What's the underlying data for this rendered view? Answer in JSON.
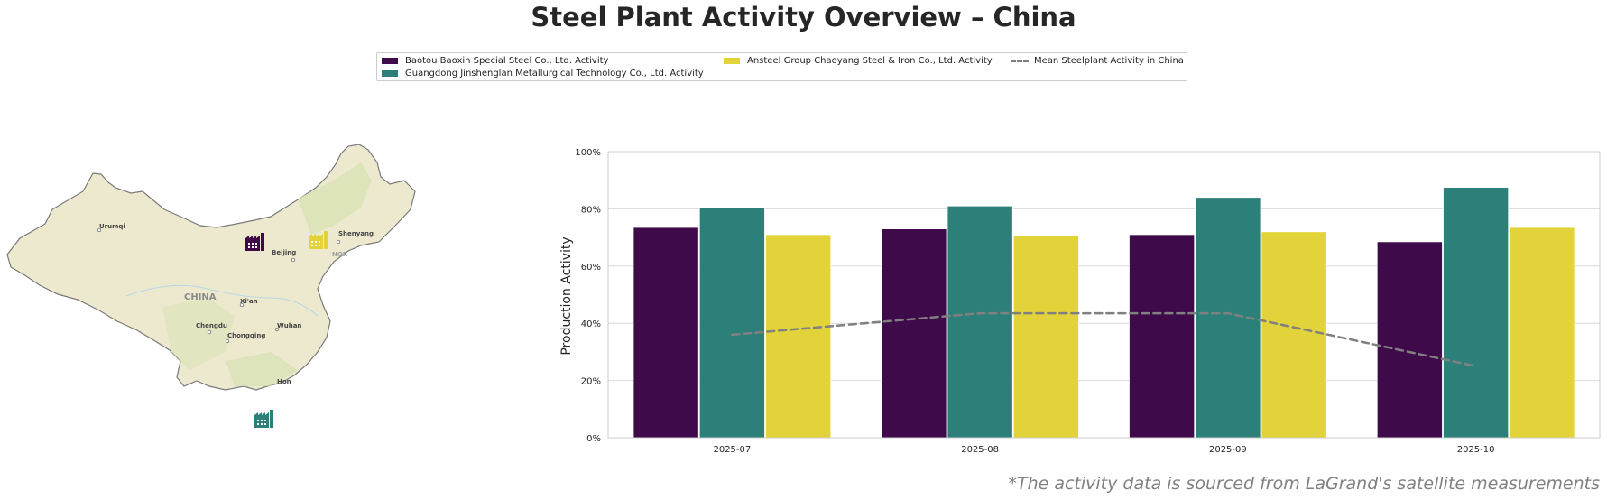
{
  "title": "Steel Plant Activity Overview – China",
  "footnote": "*The activity data is sourced from LaGrand's satellite measurements",
  "legend": [
    {
      "label": "Baotou Baoxin Special Steel Co., Ltd. Activity",
      "color": "#3f0a4a",
      "kind": "bar"
    },
    {
      "label": "Guangdong Jinshenglan Metallurgical Technology Co., Ltd. Activity",
      "color": "#2d8079",
      "kind": "bar"
    },
    {
      "label": "Ansteel Group Chaoyang Steel & Iron Co., Ltd. Activity",
      "color": "#e3d33a",
      "kind": "bar"
    },
    {
      "label": "Mean Steelplant Activity in China",
      "color": "#808080",
      "kind": "dashed-line"
    }
  ],
  "map": {
    "country_label": "CHINA",
    "cities": [
      "Urumqi",
      "Beijing",
      "Shenyang",
      "Xi'an",
      "Chengdu",
      "Chongqing",
      "Wuhan",
      "Hon"
    ],
    "other_label": "NOR",
    "plant_icons": [
      {
        "name": "factory-icon",
        "color": "#3f0a4a"
      },
      {
        "name": "factory-icon",
        "color": "#e3d33a"
      },
      {
        "name": "factory-icon",
        "color": "#2d8079"
      }
    ]
  },
  "chart_data": {
    "type": "bar",
    "categories": [
      "2025-07",
      "2025-08",
      "2025-09",
      "2025-10"
    ],
    "series": [
      {
        "name": "Baotou Baoxin Special Steel Co., Ltd. Activity",
        "color": "#3f0a4a",
        "values": [
          73.5,
          73,
          71,
          68.5
        ]
      },
      {
        "name": "Guangdong Jinshenglan Metallurgical Technology Co., Ltd. Activity",
        "color": "#2d8079",
        "values": [
          80.5,
          81,
          84,
          87.5
        ]
      },
      {
        "name": "Ansteel Group Chaoyang Steel & Iron Co., Ltd. Activity",
        "color": "#e3d33a",
        "values": [
          71,
          70.5,
          72,
          73.5
        ]
      }
    ],
    "line": {
      "name": "Mean Steelplant Activity in China",
      "color": "#808080",
      "values": [
        36,
        43.5,
        43.5,
        25
      ],
      "style": "dashed"
    },
    "ylabel": "Production Activity",
    "xlabel": "",
    "ylim": [
      0,
      100
    ],
    "yticks": [
      "0%",
      "20%",
      "40%",
      "60%",
      "80%",
      "100%"
    ],
    "grid": true
  }
}
